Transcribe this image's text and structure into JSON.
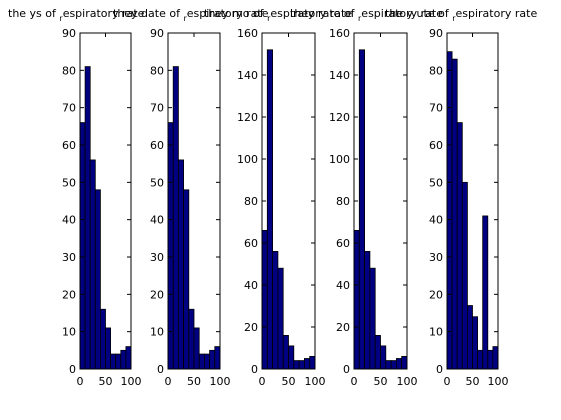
{
  "figure": {
    "background": "#ffffff",
    "bar_fill": "#000080",
    "bar_edge": "#000000"
  },
  "chart_data": [
    {
      "type": "bar",
      "title": {
        "pre": "the ys of",
        "sub": "r",
        "post": "espiratory rate"
      },
      "x": [
        5,
        15,
        25,
        35,
        45,
        55,
        65,
        75,
        85,
        95
      ],
      "values": [
        66,
        81,
        56,
        48,
        16,
        11,
        4,
        4,
        5,
        6
      ],
      "xlim": [
        0,
        100
      ],
      "ylim": [
        0,
        90
      ],
      "xticks": [
        0,
        50,
        100
      ],
      "yticks": [
        0,
        10,
        20,
        30,
        40,
        50,
        60,
        70,
        80,
        90
      ]
    },
    {
      "type": "bar",
      "title": {
        "pre": "they date of",
        "sub": "r",
        "post": "espiratory rate"
      },
      "x": [
        5,
        15,
        25,
        35,
        45,
        55,
        65,
        75,
        85,
        95
      ],
      "values": [
        66,
        81,
        56,
        48,
        16,
        11,
        4,
        4,
        5,
        6
      ],
      "xlim": [
        0,
        100
      ],
      "ylim": [
        0,
        90
      ],
      "xticks": [
        0,
        50,
        100
      ],
      "yticks": [
        0,
        10,
        20,
        30,
        40,
        50,
        60,
        70,
        80,
        90
      ]
    },
    {
      "type": "bar",
      "title": {
        "pre": "they mo of",
        "sub": "r",
        "post": "espiratory rate"
      },
      "x": [
        5,
        15,
        25,
        35,
        45,
        55,
        65,
        75,
        85,
        95
      ],
      "values": [
        66,
        152,
        56,
        48,
        16,
        11,
        4,
        4,
        5,
        6
      ],
      "xlim": [
        0,
        100
      ],
      "ylim": [
        0,
        160
      ],
      "xticks": [
        0,
        50,
        100
      ],
      "yticks": [
        0,
        20,
        40,
        60,
        80,
        100,
        120,
        140,
        160
      ]
    },
    {
      "type": "bar",
      "title": {
        "pre": "they rate of",
        "sub": "r",
        "post": "espiratory rate"
      },
      "x": [
        5,
        15,
        25,
        35,
        45,
        55,
        65,
        75,
        85,
        95
      ],
      "values": [
        66,
        152,
        56,
        48,
        16,
        11,
        4,
        4,
        5,
        6
      ],
      "xlim": [
        0,
        100
      ],
      "ylim": [
        0,
        160
      ],
      "xticks": [
        0,
        50,
        100
      ],
      "yticks": [
        0,
        20,
        40,
        60,
        80,
        100,
        120,
        140,
        160
      ]
    },
    {
      "type": "bar",
      "title": {
        "pre": "the y ute of",
        "sub": "r",
        "post": "espiratory rate"
      },
      "x": [
        5,
        15,
        25,
        35,
        45,
        55,
        65,
        75,
        85,
        95
      ],
      "values": [
        85,
        83,
        66,
        50,
        17,
        14,
        5,
        41,
        5,
        6
      ],
      "xlim": [
        0,
        100
      ],
      "ylim": [
        0,
        90
      ],
      "xticks": [
        0,
        50,
        100
      ],
      "yticks": [
        0,
        10,
        20,
        30,
        40,
        50,
        60,
        70,
        80,
        90
      ]
    }
  ]
}
